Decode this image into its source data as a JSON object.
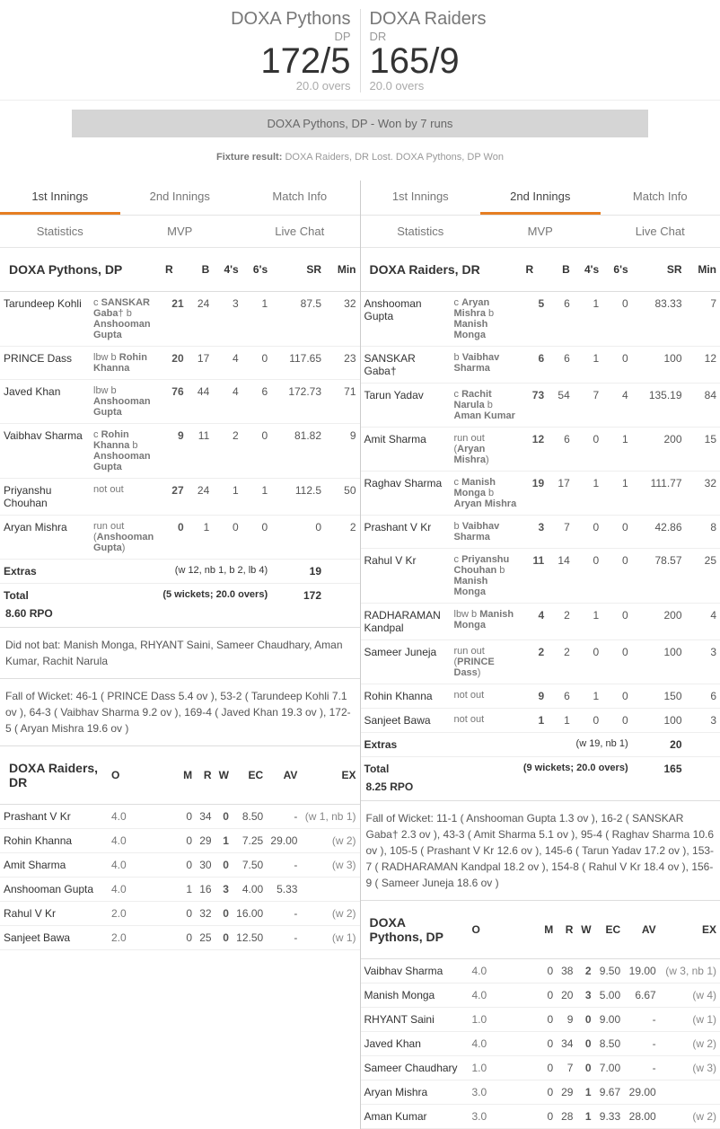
{
  "header": {
    "team1": {
      "name": "DOXA Pythons",
      "abbr": "DP",
      "score": "172/5",
      "overs": "20.0 overs"
    },
    "team2": {
      "name": "DOXA Raiders",
      "abbr": "DR",
      "score": "165/9",
      "overs": "20.0 overs"
    },
    "result": "DOXA Pythons, DP - Won by 7 runs",
    "fixture": "DOXA Raiders, DR Lost. DOXA Pythons, DP Won",
    "fixture_label": "Fixture result:"
  },
  "tabs": {
    "t1": "1st Innings",
    "t2": "2nd Innings",
    "t3": "Match Info",
    "s1": "Statistics",
    "s2": "MVP",
    "s3": "Live Chat"
  },
  "cols": {
    "r": "R",
    "b": "B",
    "f": "4's",
    "s": "6's",
    "sr": "SR",
    "min": "Min",
    "o": "O",
    "m": "M",
    "rw": "R",
    "w": "W",
    "ec": "EC",
    "av": "AV",
    "ex": "EX"
  },
  "left": {
    "bat_title": "DOXA Pythons, DP",
    "batsmen": [
      {
        "n": "Tarundeep Kohli",
        "d": "c SANSKAR Gaba† b Anshooman Gupta",
        "r": "21",
        "b": "24",
        "f": "3",
        "s": "1",
        "sr": "87.5",
        "m": "32"
      },
      {
        "n": "PRINCE Dass",
        "d": "lbw b Rohin Khanna",
        "r": "20",
        "b": "17",
        "f": "4",
        "s": "0",
        "sr": "117.65",
        "m": "23"
      },
      {
        "n": "Javed Khan",
        "d": "lbw b Anshooman Gupta",
        "r": "76",
        "b": "44",
        "f": "4",
        "s": "6",
        "sr": "172.73",
        "m": "71"
      },
      {
        "n": "Vaibhav Sharma",
        "d": "c Rohin Khanna b Anshooman Gupta",
        "r": "9",
        "b": "11",
        "f": "2",
        "s": "0",
        "sr": "81.82",
        "m": "9"
      },
      {
        "n": "Priyanshu Chouhan",
        "d": "not out",
        "r": "27",
        "b": "24",
        "f": "1",
        "s": "1",
        "sr": "112.5",
        "m": "50"
      },
      {
        "n": "Aryan Mishra",
        "d": "run out (Anshooman Gupta)",
        "r": "0",
        "b": "1",
        "f": "0",
        "s": "0",
        "sr": "0",
        "m": "2"
      }
    ],
    "extras_label": "Extras",
    "extras_detail": "(w 12, nb 1, b 2, lb 4)",
    "extras_val": "19",
    "total_label": "Total",
    "total_detail": "(5 wickets; 20.0 overs)",
    "total_val": "172",
    "rpo": "8.60 RPO",
    "dnb": "Did not bat: Manish Monga, RHYANT Saini, Sameer Chaudhary, Aman Kumar, Rachit Narula",
    "fow": "Fall of Wicket: 46-1 ( PRINCE Dass 5.4 ov ), 53-2 ( Tarundeep Kohli 7.1 ov ), 64-3 ( Vaibhav Sharma 9.2 ov ), 169-4 ( Javed Khan 19.3 ov ), 172-5 ( Aryan Mishra 19.6 ov )",
    "bowl_title": "DOXA Raiders, DR",
    "bowlers": [
      {
        "n": "Prashant V Kr",
        "o": "4.0",
        "m": "0",
        "r": "34",
        "w": "0",
        "ec": "8.50",
        "av": "-",
        "ex": "(w 1, nb 1)"
      },
      {
        "n": "Rohin Khanna",
        "o": "4.0",
        "m": "0",
        "r": "29",
        "w": "1",
        "ec": "7.25",
        "av": "29.00",
        "ex": "(w 2)"
      },
      {
        "n": "Amit Sharma",
        "o": "4.0",
        "m": "0",
        "r": "30",
        "w": "0",
        "ec": "7.50",
        "av": "-",
        "ex": "(w 3)"
      },
      {
        "n": "Anshooman Gupta",
        "o": "4.0",
        "m": "1",
        "r": "16",
        "w": "3",
        "ec": "4.00",
        "av": "5.33",
        "ex": ""
      },
      {
        "n": "Rahul V Kr",
        "o": "2.0",
        "m": "0",
        "r": "32",
        "w": "0",
        "ec": "16.00",
        "av": "-",
        "ex": "(w 2)"
      },
      {
        "n": "Sanjeet Bawa",
        "o": "2.0",
        "m": "0",
        "r": "25",
        "w": "0",
        "ec": "12.50",
        "av": "-",
        "ex": "(w 1)"
      }
    ]
  },
  "right": {
    "bat_title": "DOXA Raiders, DR",
    "batsmen": [
      {
        "n": "Anshooman Gupta",
        "d": "c Aryan Mishra b Manish Monga",
        "r": "5",
        "b": "6",
        "f": "1",
        "s": "0",
        "sr": "83.33",
        "m": "7"
      },
      {
        "n": "SANSKAR Gaba†",
        "d": "b Vaibhav Sharma",
        "r": "6",
        "b": "6",
        "f": "1",
        "s": "0",
        "sr": "100",
        "m": "12"
      },
      {
        "n": "Tarun Yadav",
        "d": "c Rachit Narula b Aman Kumar",
        "r": "73",
        "b": "54",
        "f": "7",
        "s": "4",
        "sr": "135.19",
        "m": "84"
      },
      {
        "n": "Amit Sharma",
        "d": "run out (Aryan Mishra)",
        "r": "12",
        "b": "6",
        "f": "0",
        "s": "1",
        "sr": "200",
        "m": "15"
      },
      {
        "n": "Raghav Sharma",
        "d": "c Manish Monga b Aryan Mishra",
        "r": "19",
        "b": "17",
        "f": "1",
        "s": "1",
        "sr": "111.77",
        "m": "32"
      },
      {
        "n": "Prashant V Kr",
        "d": "b Vaibhav Sharma",
        "r": "3",
        "b": "7",
        "f": "0",
        "s": "0",
        "sr": "42.86",
        "m": "8"
      },
      {
        "n": "Rahul V Kr",
        "d": "c Priyanshu Chouhan b Manish Monga",
        "r": "11",
        "b": "14",
        "f": "0",
        "s": "0",
        "sr": "78.57",
        "m": "25"
      },
      {
        "n": "RADHARAMAN Kandpal",
        "d": "lbw b Manish Monga",
        "r": "4",
        "b": "2",
        "f": "1",
        "s": "0",
        "sr": "200",
        "m": "4"
      },
      {
        "n": "Sameer Juneja",
        "d": "run out (PRINCE Dass)",
        "r": "2",
        "b": "2",
        "f": "0",
        "s": "0",
        "sr": "100",
        "m": "3"
      },
      {
        "n": "Rohin Khanna",
        "d": "not out",
        "r": "9",
        "b": "6",
        "f": "1",
        "s": "0",
        "sr": "150",
        "m": "6"
      },
      {
        "n": "Sanjeet Bawa",
        "d": "not out",
        "r": "1",
        "b": "1",
        "f": "0",
        "s": "0",
        "sr": "100",
        "m": "3"
      }
    ],
    "extras_label": "Extras",
    "extras_detail": "(w 19, nb 1)",
    "extras_val": "20",
    "total_label": "Total",
    "total_detail": "(9 wickets; 20.0 overs)",
    "total_val": "165",
    "rpo": "8.25 RPO",
    "fow": "Fall of Wicket: 11-1 ( Anshooman Gupta 1.3 ov ), 16-2 ( SANSKAR Gaba† 2.3 ov ), 43-3 ( Amit Sharma 5.1 ov ), 95-4 ( Raghav Sharma 10.6 ov ), 105-5 ( Prashant V Kr 12.6 ov ), 145-6 ( Tarun Yadav 17.2 ov ), 153-7 ( RADHARAMAN Kandpal 18.2 ov ), 154-8 ( Rahul V Kr 18.4 ov ), 156-9 ( Sameer Juneja 18.6 ov )",
    "bowl_title": "DOXA Pythons, DP",
    "bowlers": [
      {
        "n": "Vaibhav Sharma",
        "o": "4.0",
        "m": "0",
        "r": "38",
        "w": "2",
        "ec": "9.50",
        "av": "19.00",
        "ex": "(w 3, nb 1)"
      },
      {
        "n": "Manish Monga",
        "o": "4.0",
        "m": "0",
        "r": "20",
        "w": "3",
        "ec": "5.00",
        "av": "6.67",
        "ex": "(w 4)"
      },
      {
        "n": "RHYANT Saini",
        "o": "1.0",
        "m": "0",
        "r": "9",
        "w": "0",
        "ec": "9.00",
        "av": "-",
        "ex": "(w 1)"
      },
      {
        "n": "Javed Khan",
        "o": "4.0",
        "m": "0",
        "r": "34",
        "w": "0",
        "ec": "8.50",
        "av": "-",
        "ex": "(w 2)"
      },
      {
        "n": "Sameer Chaudhary",
        "o": "1.0",
        "m": "0",
        "r": "7",
        "w": "0",
        "ec": "7.00",
        "av": "-",
        "ex": "(w 3)"
      },
      {
        "n": "Aryan Mishra",
        "o": "3.0",
        "m": "0",
        "r": "29",
        "w": "1",
        "ec": "9.67",
        "av": "29.00",
        "ex": ""
      },
      {
        "n": "Aman Kumar",
        "o": "3.0",
        "m": "0",
        "r": "28",
        "w": "1",
        "ec": "9.33",
        "av": "28.00",
        "ex": "(w 2)"
      }
    ]
  }
}
